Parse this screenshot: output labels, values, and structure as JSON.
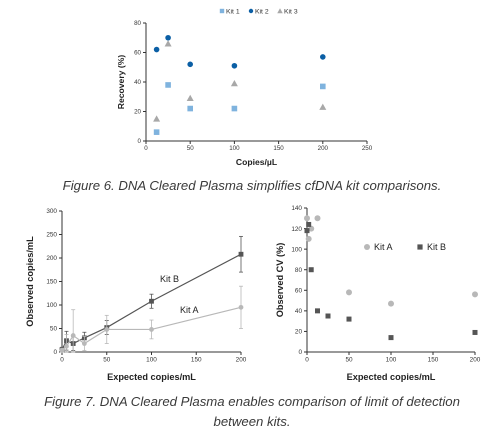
{
  "chart_data": [
    {
      "type": "scatter",
      "title": "",
      "xlabel": "Copies/µL",
      "ylabel": "Recovery (%)",
      "xlim": [
        0,
        250
      ],
      "ylim": [
        0,
        80
      ],
      "xticks": [
        0,
        50,
        100,
        150,
        200,
        250
      ],
      "yticks": [
        0,
        20,
        40,
        60,
        80
      ],
      "grid": false,
      "legend": "top-center",
      "series": [
        {
          "name": "Kit 1",
          "color": "#7fb3de",
          "marker": "square",
          "points": [
            [
              12,
              6
            ],
            [
              25,
              38
            ],
            [
              50,
              22
            ],
            [
              100,
              22
            ],
            [
              200,
              37
            ]
          ]
        },
        {
          "name": "Kit 2",
          "color": "#0b5fa5",
          "marker": "circle",
          "points": [
            [
              12,
              62
            ],
            [
              25,
              70
            ],
            [
              50,
              52
            ],
            [
              100,
              51
            ],
            [
              200,
              57
            ]
          ]
        },
        {
          "name": "Kit 3",
          "color": "#a8a8a8",
          "marker": "triangle",
          "points": [
            [
              12,
              15
            ],
            [
              25,
              66
            ],
            [
              50,
              29
            ],
            [
              100,
              39
            ],
            [
              200,
              23
            ]
          ]
        }
      ]
    },
    {
      "type": "line",
      "title": "",
      "xlabel": "Expected copies/mL",
      "ylabel": "Observed copies/mL",
      "xlim": [
        0,
        200
      ],
      "ylim": [
        0,
        300
      ],
      "xticks": [
        0,
        50,
        100,
        150,
        200
      ],
      "yticks": [
        0,
        50,
        100,
        150,
        200,
        250,
        300
      ],
      "grid": false,
      "series": [
        {
          "name": "Kit B",
          "color": "#555555",
          "marker": "square",
          "points": [
            [
              0,
              5
            ],
            [
              5,
              24
            ],
            [
              12.5,
              18
            ],
            [
              25,
              30
            ],
            [
              50,
              52
            ],
            [
              100,
              108
            ],
            [
              200,
              208
            ]
          ],
          "err": [
            5,
            20,
            15,
            12,
            15,
            15,
            38
          ]
        },
        {
          "name": "Kit A",
          "color": "#b8b8b8",
          "marker": "circle",
          "points": [
            [
              0,
              3
            ],
            [
              5,
              12
            ],
            [
              12.5,
              35
            ],
            [
              25,
              18
            ],
            [
              50,
              48
            ],
            [
              100,
              48
            ],
            [
              200,
              95
            ]
          ],
          "err": [
            5,
            25,
            55,
            15,
            30,
            20,
            45
          ]
        }
      ]
    },
    {
      "type": "scatter",
      "title": "",
      "xlabel": "Expected copies/mL",
      "ylabel": "Observed CV (%)",
      "xlim": [
        0,
        200
      ],
      "ylim": [
        0,
        140
      ],
      "xticks": [
        0,
        50,
        100,
        150,
        200
      ],
      "yticks": [
        0,
        20,
        40,
        60,
        80,
        100,
        120,
        140
      ],
      "grid": false,
      "legend": "top-right",
      "series": [
        {
          "name": "Kit A",
          "color": "#b8b8b8",
          "marker": "circle",
          "points": [
            [
              0,
              130
            ],
            [
              2,
              110
            ],
            [
              5,
              120
            ],
            [
              12.5,
              130
            ],
            [
              50,
              58
            ],
            [
              100,
              47
            ],
            [
              200,
              56
            ]
          ]
        },
        {
          "name": "Kit B",
          "color": "#555555",
          "marker": "square",
          "points": [
            [
              0,
              118
            ],
            [
              2,
              124
            ],
            [
              5,
              80
            ],
            [
              12.5,
              40
            ],
            [
              25,
              35
            ],
            [
              50,
              32
            ],
            [
              100,
              14
            ],
            [
              200,
              19
            ]
          ]
        }
      ]
    }
  ],
  "captions": {
    "fig6": "Figure 6. DNA Cleared Plasma simplifies cfDNA kit comparisons.",
    "fig7_line1": "Figure 7. DNA Cleared Plasma enables comparison of limit of detection",
    "fig7_line2": "between kits."
  }
}
